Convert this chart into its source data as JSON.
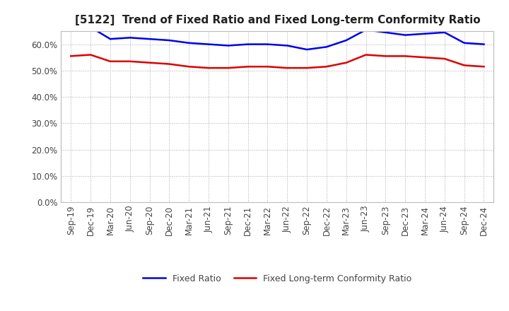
{
  "title": "[5122]  Trend of Fixed Ratio and Fixed Long-term Conformity Ratio",
  "x_labels": [
    "Sep-19",
    "Dec-19",
    "Mar-20",
    "Jun-20",
    "Sep-20",
    "Dec-20",
    "Mar-21",
    "Jun-21",
    "Sep-21",
    "Dec-21",
    "Mar-22",
    "Jun-22",
    "Sep-22",
    "Dec-22",
    "Mar-23",
    "Jun-23",
    "Sep-23",
    "Dec-23",
    "Mar-24",
    "Jun-24",
    "Sep-24",
    "Dec-24"
  ],
  "fixed_ratio": [
    65.5,
    66.5,
    62.0,
    62.5,
    62.0,
    61.5,
    60.5,
    60.0,
    59.5,
    60.0,
    60.0,
    59.5,
    58.0,
    59.0,
    61.5,
    65.5,
    64.5,
    63.5,
    64.0,
    64.5,
    60.5,
    60.0
  ],
  "fixed_lt_ratio": [
    55.5,
    56.0,
    53.5,
    53.5,
    53.0,
    52.5,
    51.5,
    51.0,
    51.0,
    51.5,
    51.5,
    51.0,
    51.0,
    51.5,
    53.0,
    56.0,
    55.5,
    55.5,
    55.0,
    54.5,
    52.0,
    51.5
  ],
  "ylim": [
    0,
    65
  ],
  "yticks": [
    0,
    10,
    20,
    30,
    40,
    50,
    60
  ],
  "ytick_labels": [
    "0.0%",
    "10.0%",
    "20.0%",
    "30.0%",
    "40.0%",
    "50.0%",
    "60.0%"
  ],
  "fixed_ratio_color": "#0000EE",
  "fixed_lt_ratio_color": "#DD0000",
  "background_color": "#FFFFFF",
  "plot_bg_color": "#FFFFFF",
  "grid_color": "#AAAAAA",
  "legend_fixed_ratio": "Fixed Ratio",
  "legend_fixed_lt_ratio": "Fixed Long-term Conformity Ratio",
  "line_width": 1.8,
  "title_fontsize": 11,
  "tick_fontsize": 8.5
}
